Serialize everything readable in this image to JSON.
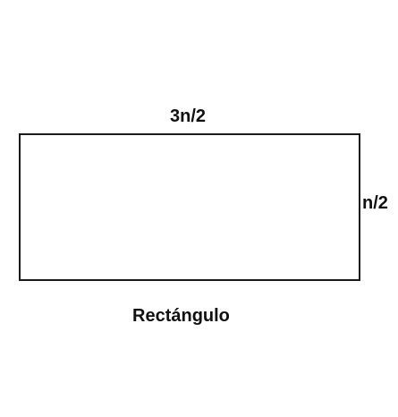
{
  "diagram": {
    "top_dimension": "3n/2",
    "side_dimension": "n/2",
    "caption": "Rectángulo",
    "stroke_color": "#1a1a1a",
    "text_color": "#111111"
  }
}
